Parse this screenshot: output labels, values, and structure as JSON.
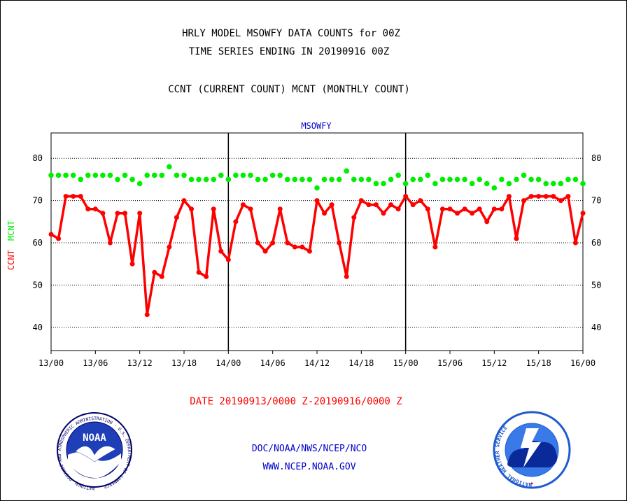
{
  "header": {
    "title_line1": "HRLY MODEL MSOWFY DATA COUNTS for 00Z",
    "title_line2": "TIME SERIES ENDING IN 20190916 00Z",
    "subtitle": "CCNT (CURRENT COUNT) MCNT (MONTHLY COUNT)"
  },
  "footer": {
    "date_range": "DATE 20190913/0000 Z-20190916/0000 Z",
    "org": "DOC/NOAA/NWS/NCEP/NCO",
    "url": "WWW.NCEP.NOAA.GOV",
    "noaa_logo_text": "NOAA",
    "noaa_ring_text": "NATIONAL OCEANIC AND ATMOSPHERIC ADMINISTRATION · U.S. DEPARTMENT OF COMMERCE",
    "nws_ring_text": "NATIONAL WEATHER SERVICE"
  },
  "colors": {
    "ccnt": "#ff0000",
    "mcnt": "#00ee00",
    "label_blue": "#0000cc",
    "axis": "#000000"
  },
  "chart_data": {
    "type": "line",
    "title": "MSOWFY",
    "ylabel_ccnt": "CCNT",
    "ylabel_mcnt": "MCNT",
    "xlim": [
      0,
      72
    ],
    "ylim": [
      34.5,
      86
    ],
    "yticks": [
      40,
      50,
      60,
      70,
      80
    ],
    "xticks": [
      {
        "x": 0,
        "label": "13/00"
      },
      {
        "x": 6,
        "label": "13/06"
      },
      {
        "x": 12,
        "label": "13/12"
      },
      {
        "x": 18,
        "label": "13/18"
      },
      {
        "x": 24,
        "label": "14/00"
      },
      {
        "x": 30,
        "label": "14/06"
      },
      {
        "x": 36,
        "label": "14/12"
      },
      {
        "x": 42,
        "label": "14/18"
      },
      {
        "x": 48,
        "label": "15/00"
      },
      {
        "x": 54,
        "label": "15/06"
      },
      {
        "x": 60,
        "label": "15/12"
      },
      {
        "x": 66,
        "label": "15/18"
      },
      {
        "x": 72,
        "label": "16/00"
      }
    ],
    "day_dividers": [
      24,
      48
    ],
    "grid": true,
    "series": [
      {
        "name": "CCNT",
        "color": "#ff0000",
        "values": [
          62,
          61,
          71,
          71,
          71,
          68,
          68,
          67,
          60,
          67,
          67,
          55,
          67,
          43,
          53,
          52,
          59,
          66,
          70,
          68,
          53,
          52,
          68,
          58,
          56,
          65,
          69,
          68,
          60,
          58,
          60,
          68,
          60,
          59,
          59,
          58,
          70,
          67,
          69,
          60,
          52,
          66,
          70,
          69,
          69,
          67,
          69,
          68,
          71,
          69,
          70,
          68,
          59,
          68,
          68,
          67,
          68,
          67,
          68,
          65,
          68,
          68,
          71,
          61,
          70,
          71,
          71,
          71,
          71,
          70,
          71,
          60,
          67
        ]
      },
      {
        "name": "MCNT",
        "color": "#00ee00",
        "values": [
          76,
          76,
          76,
          76,
          75,
          76,
          76,
          76,
          76,
          75,
          76,
          75,
          74,
          76,
          76,
          76,
          78,
          76,
          76,
          75,
          75,
          75,
          75,
          76,
          75,
          76,
          76,
          76,
          75,
          75,
          76,
          76,
          75,
          75,
          75,
          75,
          73,
          75,
          75,
          75,
          77,
          75,
          75,
          75,
          74,
          74,
          75,
          76,
          74,
          75,
          75,
          76,
          74,
          75,
          75,
          75,
          75,
          74,
          75,
          74,
          73,
          75,
          74,
          75,
          76,
          75,
          75,
          74,
          74,
          74,
          75,
          75,
          74
        ]
      }
    ]
  }
}
